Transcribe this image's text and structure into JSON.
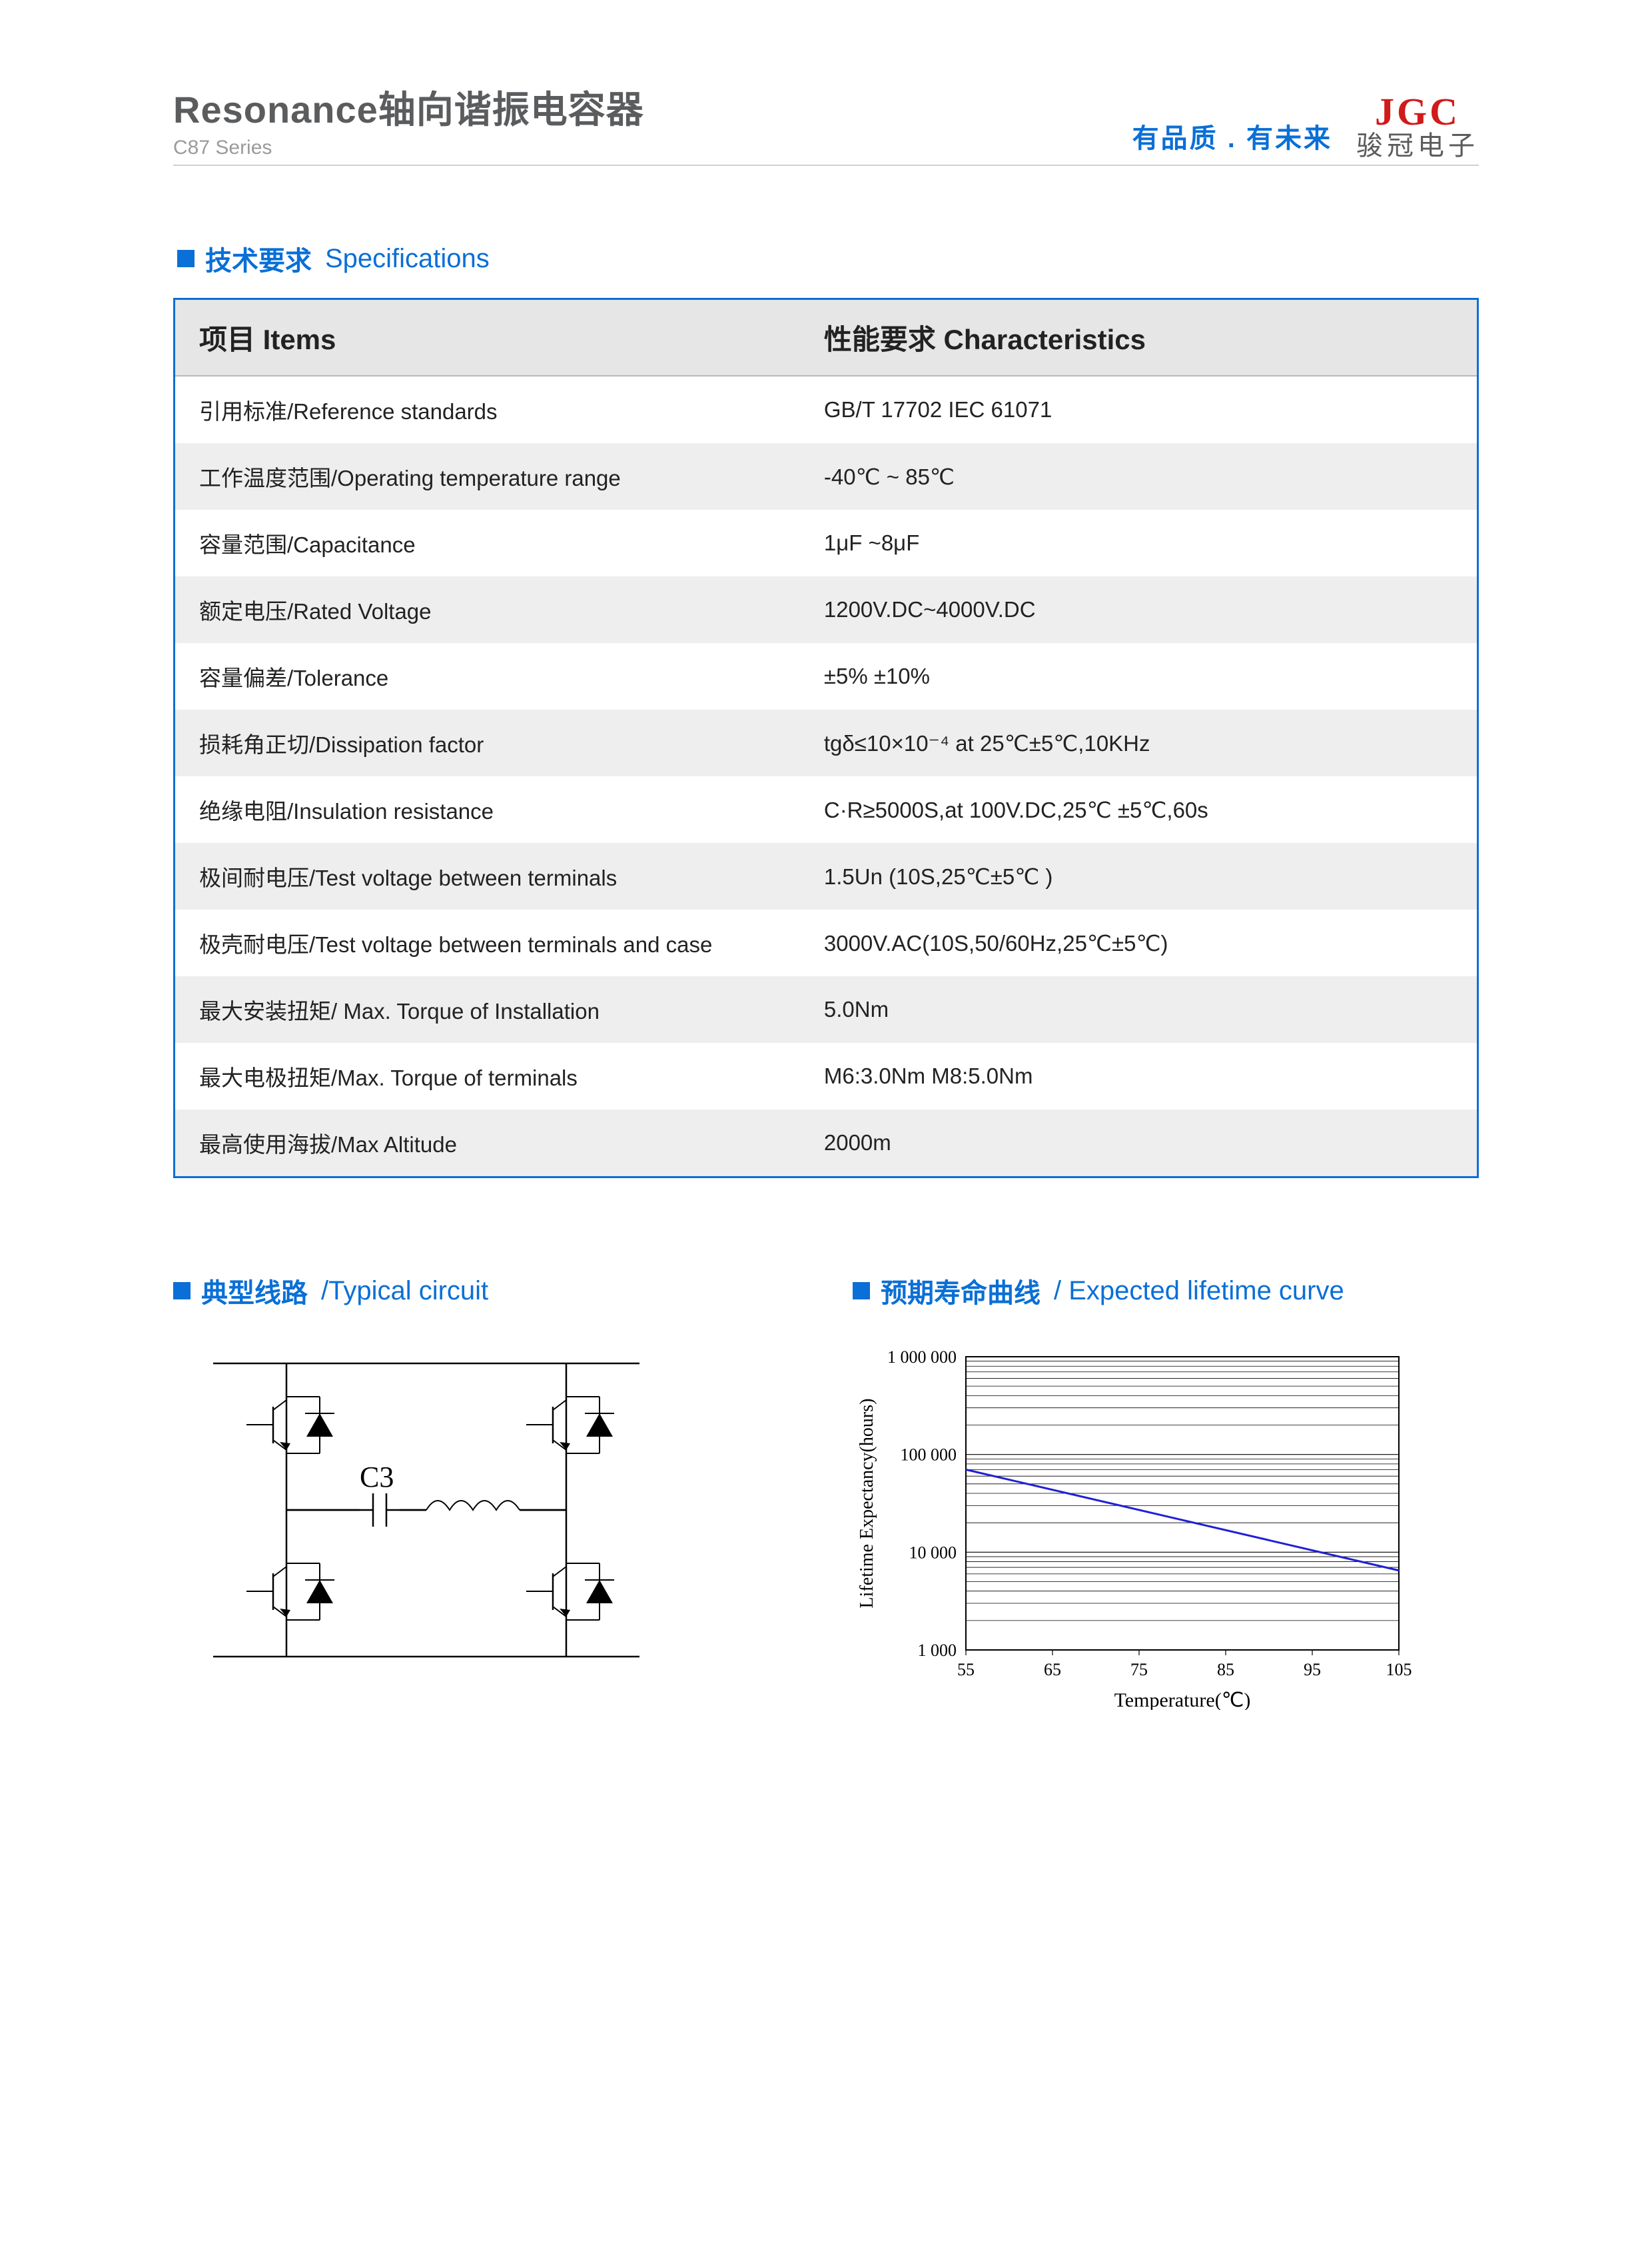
{
  "header": {
    "title_strong": "Resonance",
    "title_rest": "轴向谐振电容器",
    "subtitle": "C87 Series",
    "slogan": "有品质 . 有未来",
    "logo_top": "JGC",
    "logo_bottom": "骏冠电子",
    "colors": {
      "brand_red": "#d11a1a",
      "brand_blue": "#0a6fd6",
      "text_gray": "#5b5c5e"
    }
  },
  "spec_section": {
    "heading_cn": "技术要求",
    "heading_en": "Specifications",
    "col_item": "项目 Items",
    "col_char": "性能要求 Characteristics",
    "rows": [
      {
        "item": "引用标准/Reference standards",
        "val": "GB/T 17702  IEC 61071"
      },
      {
        "item": "工作温度范围/Operating temperature range",
        "val": "-40℃ ~ 85℃"
      },
      {
        "item": "容量范围/Capacitance",
        "val": "1μF ~8μF"
      },
      {
        "item": "额定电压/Rated Voltage",
        "val": "1200V.DC~4000V.DC"
      },
      {
        "item": "容量偏差/Tolerance",
        "val": "±5%  ±10%"
      },
      {
        "item": "损耗角正切/Dissipation factor",
        "val": "tgδ≤10×10⁻⁴ at 25℃±5℃,10KHz"
      },
      {
        "item": "绝缘电阻/Insulation resistance",
        "val": "C·R≥5000S,at 100V.DC,25℃ ±5℃,60s"
      },
      {
        "item": "极间耐电压/Test voltage between terminals",
        "val": "1.5Un  (10S,25℃±5℃ )"
      },
      {
        "item": "极壳耐电压/Test voltage between terminals and case",
        "val": "3000V.AC(10S,50/60Hz,25℃±5℃)"
      },
      {
        "item": "最大安装扭矩/ Max. Torque of Installation",
        "val": "5.0Nm"
      },
      {
        "item": "最大电极扭矩/Max. Torque of terminals",
        "val": "M6:3.0Nm   M8:5.0Nm"
      },
      {
        "item": "最高使用海拔/Max Altitude",
        "val": "2000m"
      }
    ]
  },
  "circuit_section": {
    "heading_cn": "典型线路",
    "heading_en": "/Typical circuit",
    "cap_label": "C3"
  },
  "lifetime_section": {
    "heading_cn": "预期寿命曲线",
    "heading_en": "/ Expected lifetime curve",
    "chart": {
      "type": "line-log",
      "x_label": "Temperature(℃)",
      "y_label": "Lifetime Expectancy(hours)",
      "x_ticks": [
        55,
        65,
        75,
        85,
        95,
        105
      ],
      "x_lim": [
        55,
        105
      ],
      "y_ticks": [
        1000,
        10000,
        100000,
        1000000
      ],
      "y_tick_labels": [
        "1 000",
        "10 000",
        "100 000",
        "1 000 000"
      ],
      "y_lim_log": [
        3,
        6
      ],
      "minor_log_lines": true,
      "line_color": "#2020d6",
      "grid_color": "#000000",
      "background": "#ffffff",
      "data_points": [
        {
          "x": 55,
          "y": 70000
        },
        {
          "x": 105,
          "y": 6500
        }
      ]
    }
  }
}
